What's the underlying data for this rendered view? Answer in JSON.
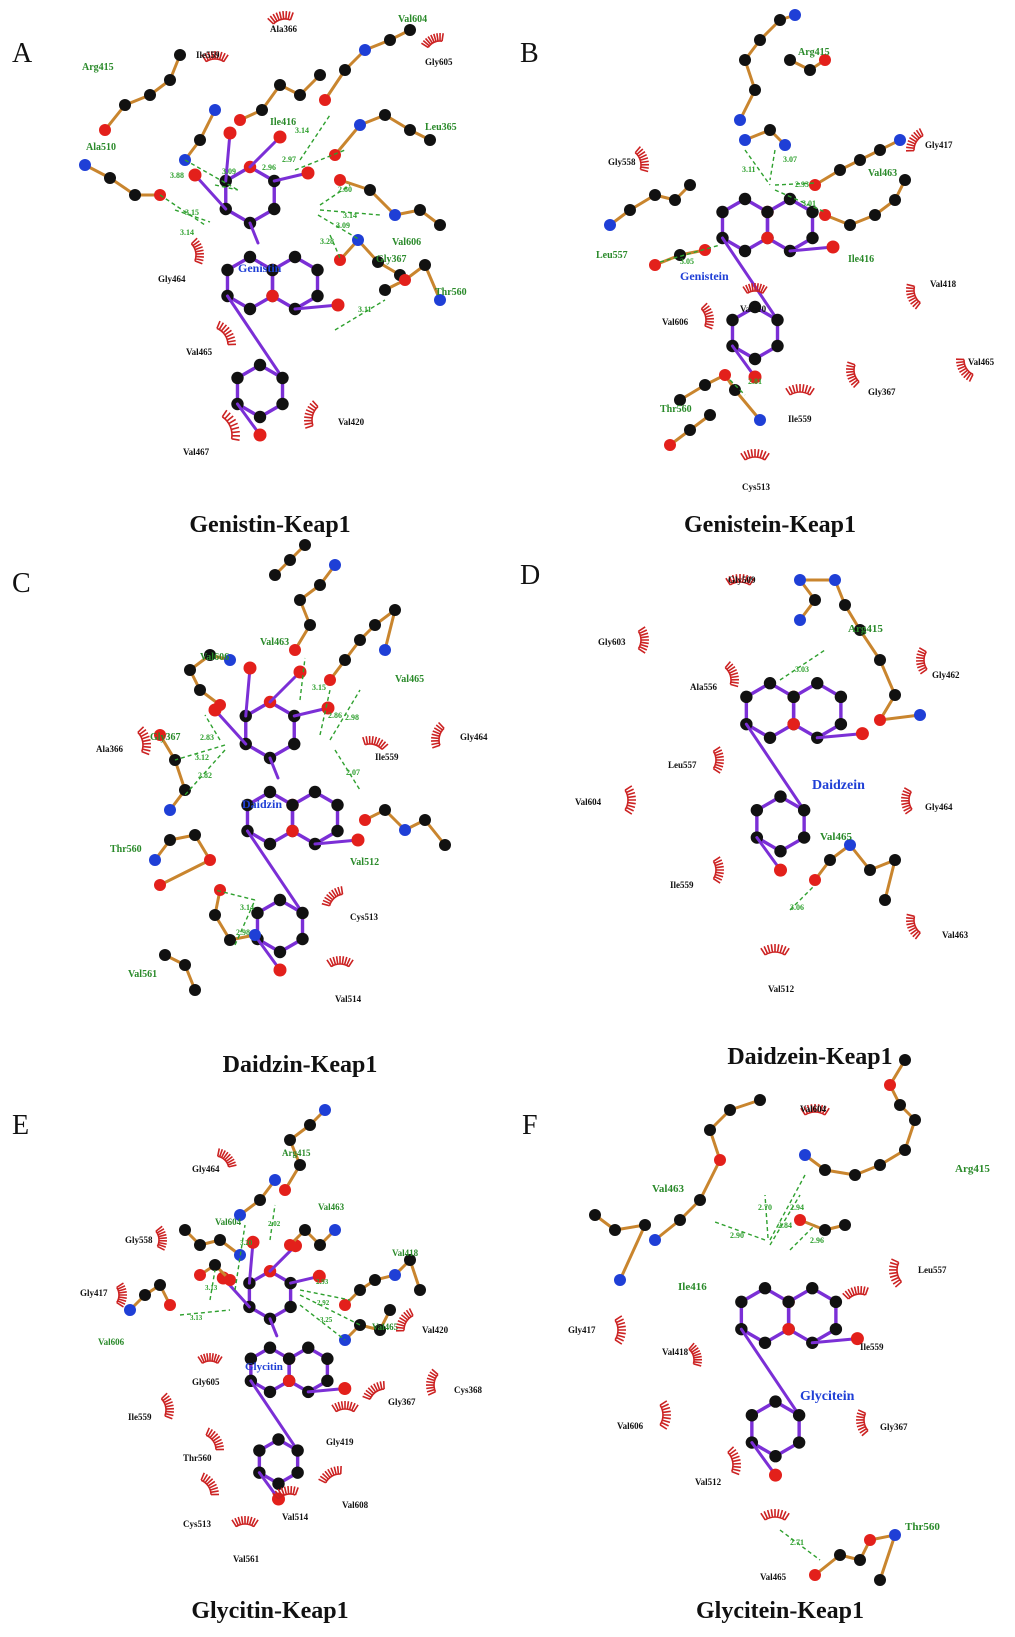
{
  "colors": {
    "carbon": "#111111",
    "oxygen": "#e3201b",
    "nitrogen": "#1f3fd6",
    "ligand_bond": "#7b2fd6",
    "residue_bond": "#c9852e",
    "hbond": "#2ea02e",
    "hydrophobic": "#cc2222",
    "residue_label": "#2a8a2a",
    "ligand_label": "#1f3fd6"
  },
  "panels": [
    {
      "letter": "A",
      "ligand": "Genistin",
      "caption": "Genistin-Keap1",
      "hbond_residues": [
        "Arg415",
        "Ala510",
        "Ile416",
        "Leu365",
        "Val604",
        "Val606",
        "Gly367",
        "Thr560"
      ],
      "hydrophobic_residues": [
        "Ile559",
        "Ala366",
        "Gly605",
        "Gly464",
        "Val465",
        "Val467",
        "Val420"
      ],
      "distances": [
        "3.88",
        "3.09",
        "3.15",
        "3.14",
        "3.14",
        "2.96",
        "2.97",
        "2.80",
        "3.14",
        "3.09",
        "3.28",
        "3.11"
      ]
    },
    {
      "letter": "B",
      "ligand": "Genistein",
      "caption": "Genistein-Keap1",
      "hbond_residues": [
        "Arg415",
        "Val463",
        "Ile416",
        "Leu557",
        "Thr560"
      ],
      "hydrophobic_residues": [
        "Gly417",
        "Gly558",
        "Val418",
        "Val606",
        "Val465",
        "Gly367",
        "Ile559",
        "Cys513",
        "Val510"
      ],
      "distances": [
        "3.11",
        "3.07",
        "2.93",
        "3.01",
        "3.05",
        "2.81"
      ]
    },
    {
      "letter": "C",
      "ligand": "Daidzin",
      "caption": "Daidzin-Keap1",
      "hbond_residues": [
        "Val463",
        "Val606",
        "Val465",
        "Gly367",
        "Thr560",
        "Val512",
        "Val561"
      ],
      "hydrophobic_residues": [
        "Ala366",
        "Ile559",
        "Gly464",
        "Cys513",
        "Val514"
      ],
      "distances": [
        "3.15",
        "2.86",
        "2.98",
        "2.07",
        "2.83",
        "3.12",
        "2.82",
        "3.14",
        "2.98"
      ]
    },
    {
      "letter": "D",
      "ligand": "Daidzein",
      "caption": "Daidzein-Keap1",
      "hbond_residues": [
        "Arg415",
        "Val465"
      ],
      "hydrophobic_residues": [
        "Gly509",
        "Gly603",
        "Ala556",
        "Gly462",
        "Leu557",
        "Val604",
        "Gly464",
        "Ile559",
        "Val463",
        "Val512"
      ],
      "distances": [
        "3.03",
        "3.06"
      ]
    },
    {
      "letter": "E",
      "ligand": "Glycitin",
      "caption": "Glycitin-Keap1",
      "hbond_residues": [
        "Arg415",
        "Val604",
        "Val463",
        "Val418",
        "Val606",
        "Val465"
      ],
      "hydrophobic_residues": [
        "Gly464",
        "Gly558",
        "Gly417",
        "Gly605",
        "Ile559",
        "Thr560",
        "Cys513",
        "Val561",
        "Val514",
        "Val608",
        "Gly419",
        "Gly367",
        "Cys368",
        "Val420"
      ],
      "distances": [
        "3.20",
        "2.02",
        "2.93",
        "2.92",
        "3.25",
        "3.13",
        "3.13"
      ]
    },
    {
      "letter": "F",
      "ligand": "Glycitein",
      "caption": "Glycitein-Keap1",
      "hbond_residues": [
        "Val463",
        "Arg415",
        "Ile416",
        "Thr560"
      ],
      "hydrophobic_residues": [
        "Val604",
        "Leu557",
        "Gly417",
        "Val418",
        "Ile559",
        "Val606",
        "Gly367",
        "Val512",
        "Val465"
      ],
      "distances": [
        "2.90",
        "2.70",
        "2.94",
        "2.84",
        "2.96",
        "2.71"
      ]
    }
  ]
}
